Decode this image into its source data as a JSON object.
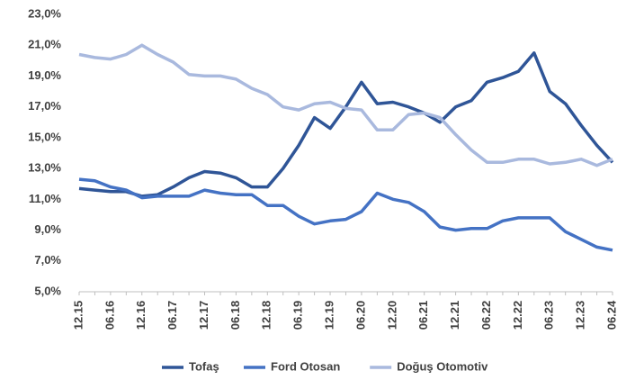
{
  "chart_data": {
    "type": "line",
    "categories": [
      "12.15",
      null,
      "06.16",
      null,
      "12.16",
      null,
      "06.17",
      null,
      "12.17",
      null,
      "06.18",
      null,
      "12.18",
      null,
      "06.19",
      null,
      "12.19",
      null,
      "06.20",
      null,
      "12.20",
      null,
      "06.21",
      null,
      "12.21",
      null,
      "06.22",
      null,
      "12.22",
      null,
      "06.23",
      null,
      "12.23",
      null,
      "06.24"
    ],
    "series": [
      {
        "name": "Tofaş",
        "color": "#2f5597",
        "values": [
          11.7,
          11.6,
          11.5,
          11.5,
          11.2,
          11.3,
          11.8,
          12.4,
          12.8,
          12.7,
          12.4,
          11.8,
          11.8,
          13.0,
          14.5,
          16.3,
          15.6,
          17.0,
          18.6,
          17.2,
          17.3,
          17.0,
          16.6,
          16.0,
          17.0,
          17.4,
          18.6,
          18.9,
          19.3,
          20.5,
          18.0,
          17.2,
          15.8,
          14.5,
          13.4
        ]
      },
      {
        "name": "Ford Otosan",
        "color": "#4472c4",
        "values": [
          12.3,
          12.2,
          11.8,
          11.6,
          11.1,
          11.2,
          11.2,
          11.2,
          11.6,
          11.4,
          11.3,
          11.3,
          10.6,
          10.6,
          9.9,
          9.4,
          9.6,
          9.7,
          10.2,
          11.4,
          11.0,
          10.8,
          10.2,
          9.2,
          9.0,
          9.1,
          9.1,
          9.6,
          9.8,
          9.8,
          9.8,
          8.9,
          8.4,
          7.9,
          7.7
        ]
      },
      {
        "name": "Doğuş Otomotiv",
        "color": "#a9b9de",
        "values": [
          20.4,
          20.2,
          20.1,
          20.4,
          21.0,
          20.4,
          19.9,
          19.1,
          19.0,
          19.0,
          18.8,
          18.2,
          17.8,
          17.0,
          16.8,
          17.2,
          17.3,
          16.9,
          16.8,
          15.5,
          15.5,
          16.5,
          16.6,
          16.3,
          15.2,
          14.2,
          13.4,
          13.4,
          13.6,
          13.6,
          13.3,
          13.4,
          13.6,
          13.2,
          13.6
        ]
      }
    ],
    "ylim": [
      5,
      23
    ],
    "yticks": [
      {
        "value": 5,
        "label": "5,0%"
      },
      {
        "value": 7,
        "label": "7,0%"
      },
      {
        "value": 9,
        "label": "9,0%"
      },
      {
        "value": 11,
        "label": "11,0%"
      },
      {
        "value": 13,
        "label": "13,0%"
      },
      {
        "value": 15,
        "label": "15,0%"
      },
      {
        "value": 17,
        "label": "17,0%"
      },
      {
        "value": 19,
        "label": "19,0%"
      },
      {
        "value": 21,
        "label": "21,0%"
      },
      {
        "value": 23,
        "label": "23,0%"
      }
    ],
    "legend": "bottom"
  }
}
